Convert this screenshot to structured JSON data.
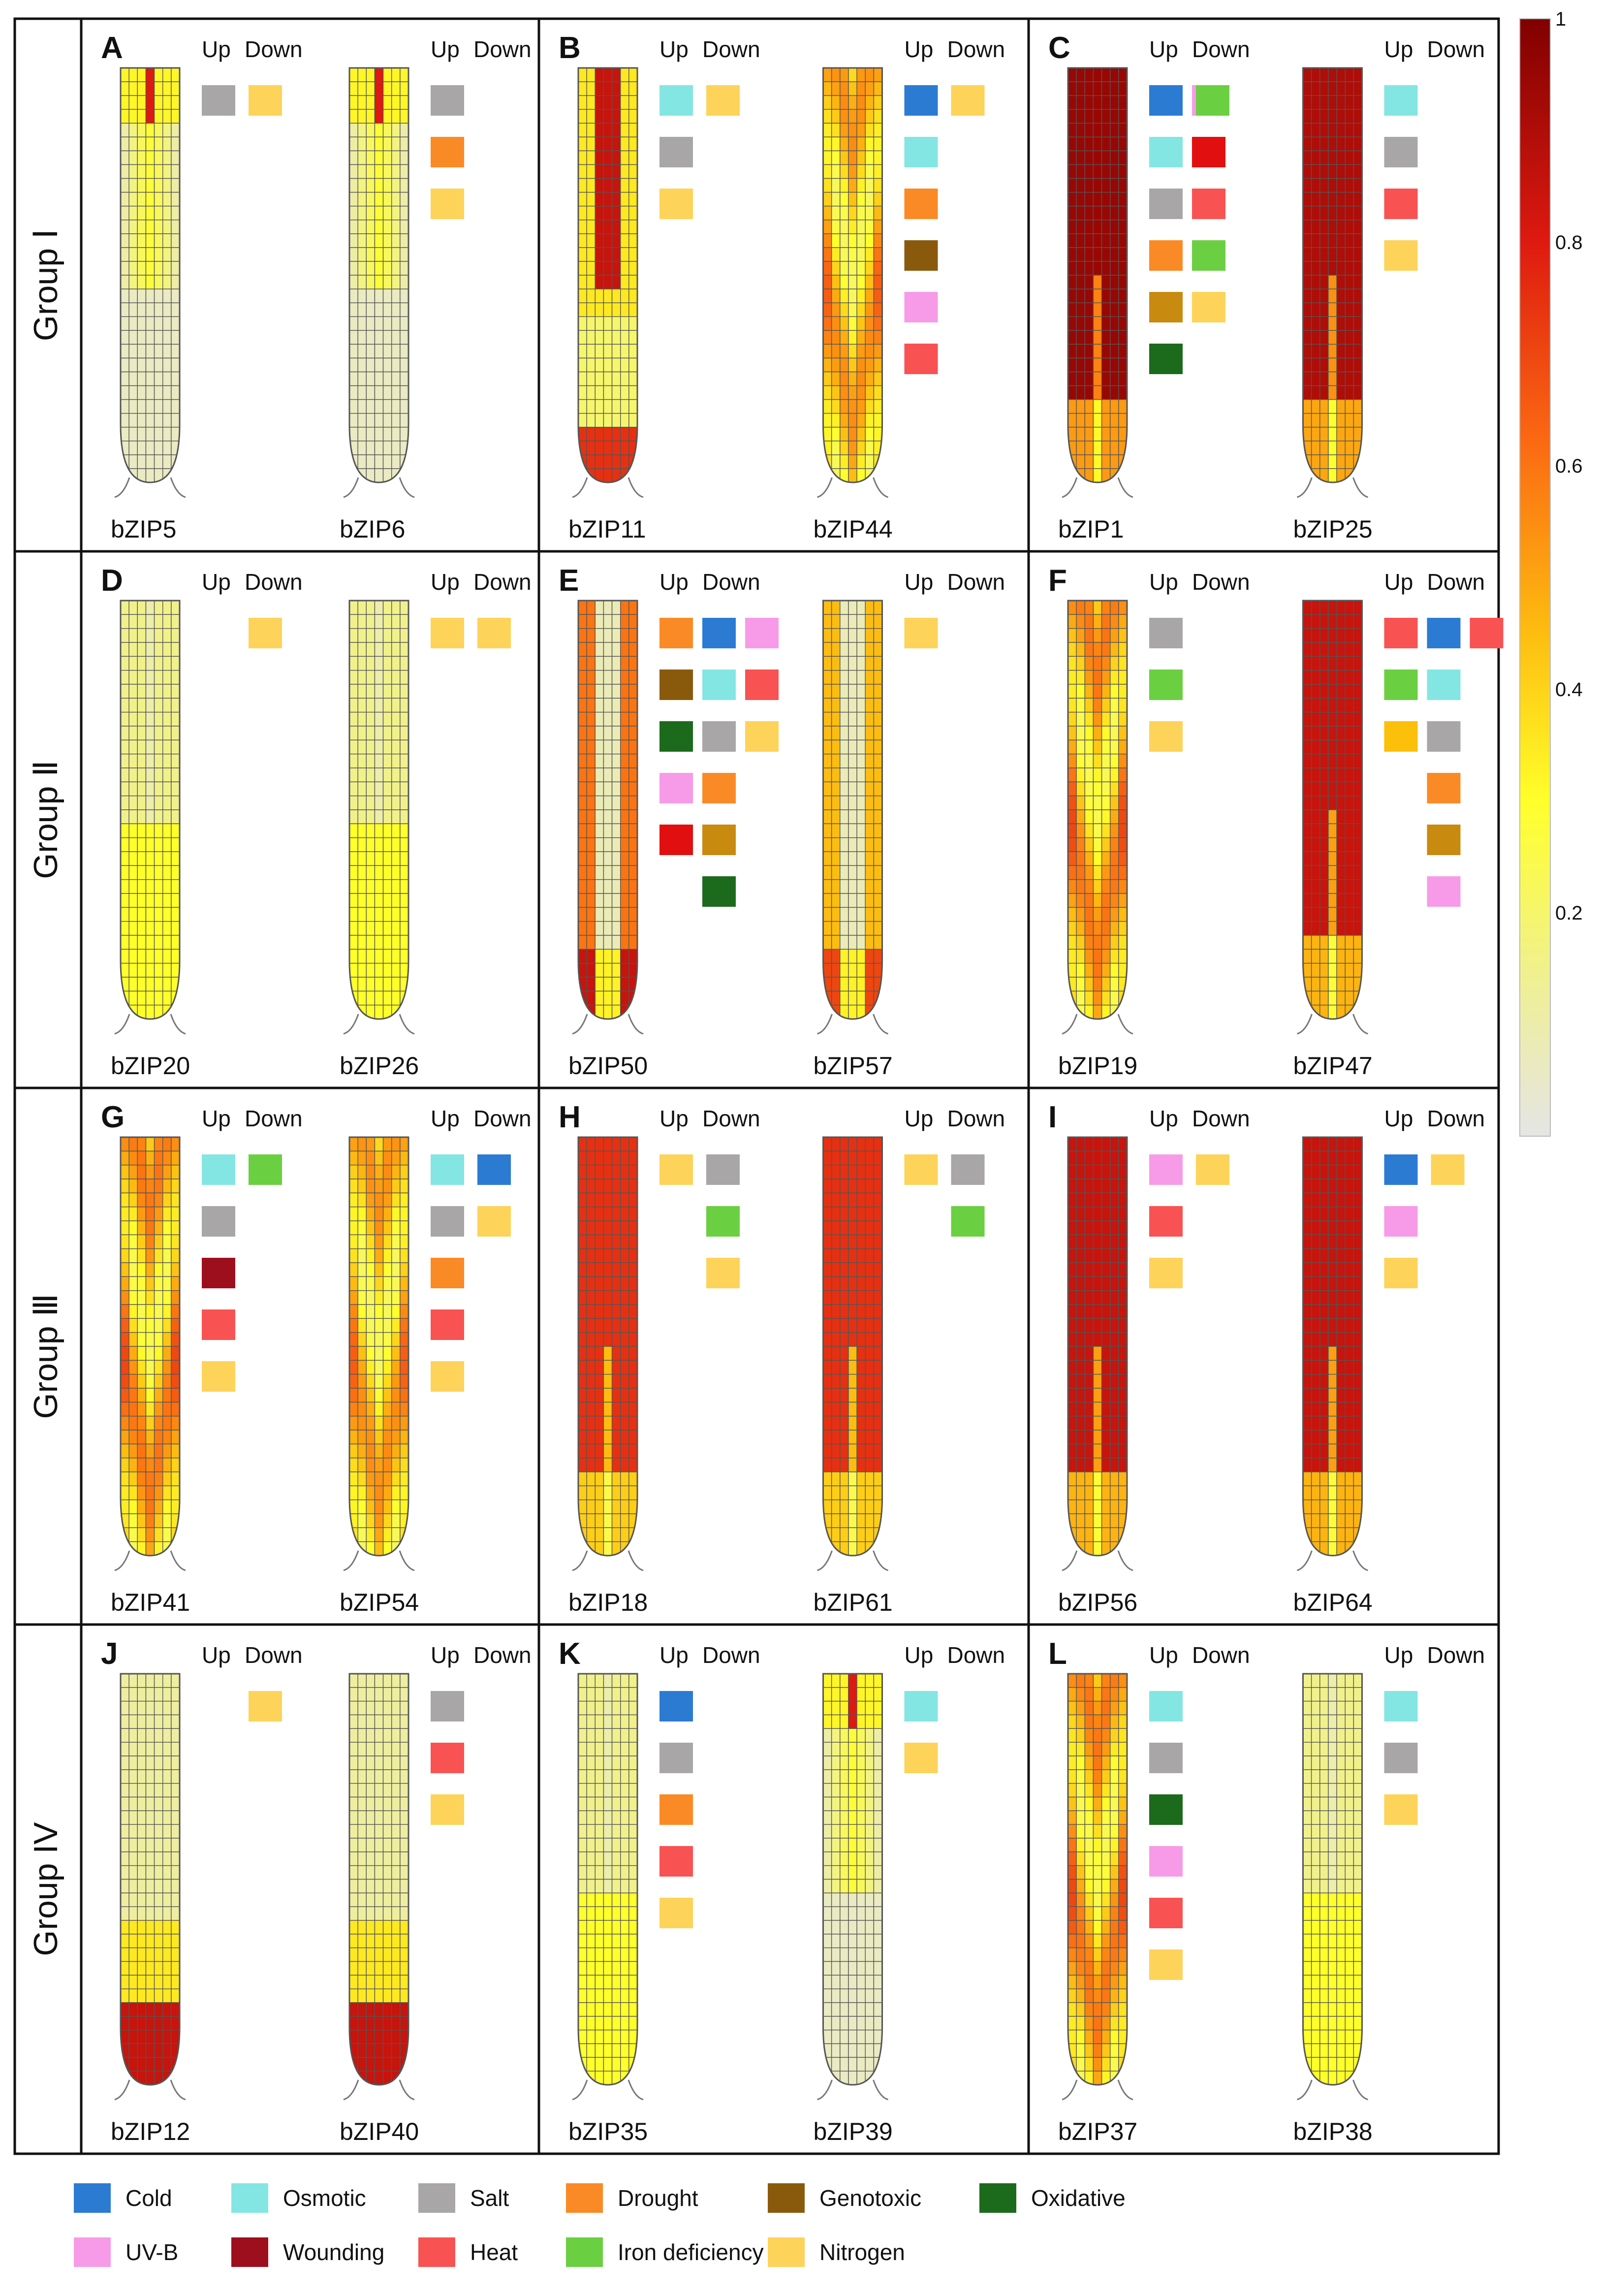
{
  "figure": {
    "groups": [
      "Group Ⅰ",
      "Group Ⅱ",
      "Group Ⅲ",
      "Group IV"
    ],
    "colorbar": {
      "ticks": [
        "1",
        "0.8",
        "0.6",
        "0.4",
        "0.2"
      ],
      "min_color": "#e5e5e5",
      "mid_color": "#ffff00",
      "max_color": "#800000"
    },
    "column_headers": {
      "up": "Up",
      "down": "Down"
    },
    "stimuli": [
      {
        "key": "cold",
        "label": "Cold",
        "color": "#2b7bd3"
      },
      {
        "key": "osmotic",
        "label": "Osmotic",
        "color": "#84e6e2"
      },
      {
        "key": "salt",
        "label": "Salt",
        "color": "#a8a6a6"
      },
      {
        "key": "drought",
        "label": "Drought",
        "color": "#fa8a26"
      },
      {
        "key": "genotoxic",
        "label": "Genotoxic",
        "color": "#8a5a0c"
      },
      {
        "key": "oxidative",
        "label": "Oxidative",
        "color": "#1c6a1c"
      },
      {
        "key": "uvb",
        "label": "UV-B",
        "color": "#f79be8"
      },
      {
        "key": "wounding",
        "label": "Wounding",
        "color": "#9e0f1e"
      },
      {
        "key": "heat",
        "label": "Heat",
        "color": "#f95252"
      },
      {
        "key": "iron",
        "label": "Iron deficiency",
        "color": "#6bcf42"
      },
      {
        "key": "nitrogen",
        "label": "Nitrogen",
        "color": "#fdd35a"
      },
      {
        "key": "goldbrown",
        "label": "",
        "color": "#c98a10"
      },
      {
        "key": "amber",
        "label": "",
        "color": "#fcbf0a"
      },
      {
        "key": "brightred",
        "label": "",
        "color": "#e10f0f"
      }
    ],
    "panels": [
      {
        "letter": "A",
        "genes": [
          {
            "name": "bZIP5",
            "profile": "low",
            "intensity": 0.15,
            "up": [
              [
                "salt"
              ]
            ],
            "down": [
              [
                "nitrogen"
              ]
            ]
          },
          {
            "name": "bZIP6",
            "profile": "low",
            "intensity": 0.15,
            "up": [
              [
                "salt"
              ],
              [
                "drought"
              ],
              [
                "nitrogen"
              ]
            ],
            "down": []
          }
        ]
      },
      {
        "letter": "B",
        "genes": [
          {
            "name": "bZIP11",
            "profile": "center",
            "intensity": 0.55,
            "up": [
              [
                "osmotic"
              ],
              [
                "salt"
              ],
              [
                "nitrogen"
              ]
            ],
            "down": [
              [
                "nitrogen"
              ]
            ]
          },
          {
            "name": "bZIP44",
            "profile": "mixed",
            "intensity": 0.55,
            "up": [
              [
                "cold"
              ],
              [
                "osmotic"
              ],
              [
                "drought"
              ],
              [
                "genotoxic"
              ],
              [
                "uvb"
              ],
              [
                "heat"
              ]
            ],
            "down": [
              [
                "nitrogen"
              ]
            ]
          }
        ]
      },
      {
        "letter": "C",
        "genes": [
          {
            "name": "bZIP1",
            "profile": "full",
            "intensity": 0.95,
            "up": [
              [
                "cold",
                "uvb"
              ],
              [
                "osmotic",
                "brightred"
              ],
              [
                "salt",
                "heat"
              ],
              [
                "drought",
                "iron"
              ],
              [
                "goldbrown",
                "nitrogen"
              ],
              [
                "oxidative"
              ]
            ],
            "down": [
              [
                "iron"
              ]
            ]
          },
          {
            "name": "bZIP25",
            "profile": "full",
            "intensity": 0.9,
            "up": [
              [
                "osmotic"
              ],
              [
                "salt"
              ],
              [
                "heat"
              ],
              [
                "nitrogen"
              ]
            ],
            "down": []
          }
        ]
      },
      {
        "letter": "D",
        "genes": [
          {
            "name": "bZIP20",
            "profile": "tipyellow",
            "intensity": 0.3,
            "up": [],
            "down": [
              [
                "nitrogen"
              ]
            ]
          },
          {
            "name": "bZIP26",
            "profile": "tipyellow",
            "intensity": 0.3,
            "up": [
              [
                "nitrogen"
              ]
            ],
            "down": [
              [
                "nitrogen"
              ]
            ]
          }
        ]
      },
      {
        "letter": "E",
        "genes": [
          {
            "name": "bZIP50",
            "profile": "sides",
            "intensity": 0.6,
            "up": [
              [
                "drought",
                "cold",
                "uvb"
              ],
              [
                "genotoxic",
                "osmotic",
                "heat"
              ],
              [
                "oxidative",
                "salt",
                "nitrogen"
              ],
              [
                "uvb",
                "drought"
              ],
              [
                "brightred",
                "goldbrown"
              ],
              [
                "",
                "oxidative"
              ]
            ],
            "down": []
          },
          {
            "name": "bZIP57",
            "profile": "sides",
            "intensity": 0.45,
            "up": [
              [
                "nitrogen"
              ]
            ],
            "down": []
          }
        ]
      },
      {
        "letter": "F",
        "genes": [
          {
            "name": "bZIP19",
            "profile": "mixed",
            "intensity": 0.6,
            "up": [
              [
                "salt"
              ],
              [
                "iron"
              ],
              [
                "nitrogen"
              ]
            ],
            "down": []
          },
          {
            "name": "bZIP47",
            "profile": "full",
            "intensity": 0.85,
            "up": [
              [
                "heat",
                "cold",
                "heat"
              ],
              [
                "iron",
                "osmotic"
              ],
              [
                "amber",
                "salt"
              ],
              [
                "",
                "drought"
              ],
              [
                "",
                "goldbrown"
              ],
              [
                "",
                "uvb"
              ]
            ],
            "down": []
          }
        ]
      },
      {
        "letter": "G",
        "genes": [
          {
            "name": "bZIP41",
            "profile": "mixed",
            "intensity": 0.6,
            "up": [
              [
                "osmotic"
              ],
              [
                "salt"
              ],
              [
                "wounding"
              ],
              [
                "heat"
              ],
              [
                "nitrogen"
              ]
            ],
            "down": [
              [
                "iron"
              ]
            ]
          },
          {
            "name": "bZIP54",
            "profile": "mixed",
            "intensity": 0.55,
            "up": [
              [
                "osmotic"
              ],
              [
                "salt"
              ],
              [
                "drought"
              ],
              [
                "heat"
              ],
              [
                "nitrogen"
              ]
            ],
            "down": [
              [
                "cold"
              ],
              [
                "nitrogen"
              ]
            ]
          }
        ]
      },
      {
        "letter": "H",
        "genes": [
          {
            "name": "bZIP18",
            "profile": "full",
            "intensity": 0.75,
            "up": [
              [
                "nitrogen"
              ]
            ],
            "down": [
              [
                "salt"
              ],
              [
                "iron"
              ],
              [
                "nitrogen"
              ]
            ]
          },
          {
            "name": "bZIP61",
            "profile": "full",
            "intensity": 0.75,
            "up": [
              [
                "nitrogen"
              ]
            ],
            "down": [
              [
                "salt"
              ],
              [
                "iron"
              ]
            ]
          }
        ]
      },
      {
        "letter": "I",
        "genes": [
          {
            "name": "bZIP56",
            "profile": "full",
            "intensity": 0.85,
            "up": [
              [
                "uvb"
              ],
              [
                "heat"
              ],
              [
                "nitrogen"
              ]
            ],
            "down": [
              [
                "nitrogen"
              ]
            ]
          },
          {
            "name": "bZIP64",
            "profile": "full",
            "intensity": 0.85,
            "up": [
              [
                "cold"
              ],
              [
                "uvb"
              ],
              [
                "nitrogen"
              ]
            ],
            "down": [
              [
                "nitrogen"
              ]
            ]
          }
        ]
      },
      {
        "letter": "J",
        "genes": [
          {
            "name": "bZIP12",
            "profile": "tipred",
            "intensity": 0.4,
            "up": [],
            "down": [
              [
                "nitrogen"
              ]
            ]
          },
          {
            "name": "bZIP40",
            "profile": "tipred",
            "intensity": 0.4,
            "up": [
              [
                "salt"
              ],
              [
                "heat"
              ],
              [
                "nitrogen"
              ]
            ],
            "down": []
          }
        ]
      },
      {
        "letter": "K",
        "genes": [
          {
            "name": "bZIP35",
            "profile": "tipyellow",
            "intensity": 0.25,
            "up": [
              [
                "cold"
              ],
              [
                "salt"
              ],
              [
                "drought"
              ],
              [
                "heat"
              ],
              [
                "nitrogen"
              ]
            ],
            "down": []
          },
          {
            "name": "bZIP39",
            "profile": "low",
            "intensity": 0.1,
            "up": [
              [
                "osmotic"
              ],
              [
                "nitrogen"
              ]
            ],
            "down": []
          }
        ]
      },
      {
        "letter": "L",
        "genes": [
          {
            "name": "bZIP37",
            "profile": "mixed",
            "intensity": 0.6,
            "up": [
              [
                "osmotic"
              ],
              [
                "salt"
              ],
              [
                "oxidative"
              ],
              [
                "uvb"
              ],
              [
                "heat"
              ],
              [
                "nitrogen"
              ]
            ],
            "down": []
          },
          {
            "name": "bZIP38",
            "profile": "tipyellow",
            "intensity": 0.35,
            "up": [
              [
                "osmotic"
              ],
              [
                "salt"
              ],
              [
                "nitrogen"
              ]
            ],
            "down": []
          }
        ]
      }
    ],
    "legend_order": [
      "cold",
      "osmotic",
      "salt",
      "drought",
      "genotoxic",
      "oxidative",
      "uvb",
      "wounding",
      "heat",
      "iron",
      "nitrogen"
    ]
  }
}
